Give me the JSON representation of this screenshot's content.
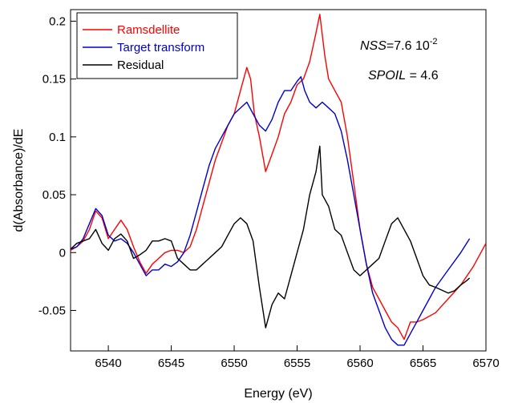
{
  "chart_data": {
    "type": "line",
    "xlabel": "Energy (eV)",
    "ylabel": "d(Absorbance)/dE",
    "xlim": [
      6537,
      6570
    ],
    "ylim": [
      -0.085,
      0.21
    ],
    "x_ticks": [
      6540,
      6545,
      6550,
      6555,
      6560,
      6565,
      6570
    ],
    "x_tick_labels": [
      "6540",
      "6545",
      "6550",
      "6555",
      "6560",
      "6565",
      "6570"
    ],
    "y_ticks": [
      -0.05,
      0,
      0.05,
      0.1,
      0.15,
      0.2
    ],
    "y_tick_labels": [
      "-0.05",
      "0",
      "0.05",
      "0.1",
      "0.15",
      "0.2"
    ],
    "grid": false,
    "legend_position": "top-left",
    "annotations": {
      "nss_name": "NSS",
      "nss_value": "=7.6 10",
      "nss_exp": "-2",
      "spoil_name": "SPOIL",
      "spoil_value": " = 4.6"
    },
    "series": [
      {
        "name": "Ramsdellite",
        "color": "#ff0000",
        "points": [
          [
            6537,
            0.002
          ],
          [
            6537.5,
            0.005
          ],
          [
            6538,
            0.01
          ],
          [
            6538.5,
            0.02
          ],
          [
            6539,
            0.036
          ],
          [
            6539.5,
            0.03
          ],
          [
            6540,
            0.012
          ],
          [
            6540.5,
            0.02
          ],
          [
            6541,
            0.028
          ],
          [
            6541.5,
            0.02
          ],
          [
            6542,
            0.005
          ],
          [
            6542.5,
            -0.008
          ],
          [
            6543,
            -0.018
          ],
          [
            6543.5,
            -0.01
          ],
          [
            6544,
            -0.005
          ],
          [
            6544.5,
            0.0
          ],
          [
            6545,
            0.002
          ],
          [
            6545.5,
            0.002
          ],
          [
            6546,
            0.0
          ],
          [
            6546.5,
            0.005
          ],
          [
            6547,
            0.02
          ],
          [
            6547.5,
            0.04
          ],
          [
            6548,
            0.06
          ],
          [
            6548.5,
            0.08
          ],
          [
            6549,
            0.095
          ],
          [
            6549.5,
            0.11
          ],
          [
            6550,
            0.12
          ],
          [
            6550.5,
            0.14
          ],
          [
            6551,
            0.16
          ],
          [
            6551.3,
            0.15
          ],
          [
            6551.6,
            0.12
          ],
          [
            6552,
            0.1
          ],
          [
            6552.5,
            0.07
          ],
          [
            6553,
            0.085
          ],
          [
            6553.5,
            0.1
          ],
          [
            6554,
            0.12
          ],
          [
            6554.5,
            0.13
          ],
          [
            6555,
            0.145
          ],
          [
            6555.5,
            0.15
          ],
          [
            6556,
            0.165
          ],
          [
            6556.5,
            0.19
          ],
          [
            6556.8,
            0.206
          ],
          [
            6557.2,
            0.17
          ],
          [
            6557.5,
            0.15
          ],
          [
            6558,
            0.14
          ],
          [
            6558.5,
            0.13
          ],
          [
            6559,
            0.1
          ],
          [
            6559.5,
            0.06
          ],
          [
            6560,
            0.02
          ],
          [
            6560.5,
            -0.01
          ],
          [
            6561,
            -0.03
          ],
          [
            6561.5,
            -0.04
          ],
          [
            6562,
            -0.05
          ],
          [
            6562.5,
            -0.06
          ],
          [
            6563,
            -0.065
          ],
          [
            6563.5,
            -0.075
          ],
          [
            6564,
            -0.06
          ],
          [
            6564.5,
            -0.06
          ],
          [
            6565,
            -0.058
          ],
          [
            6566,
            -0.052
          ],
          [
            6567,
            -0.04
          ],
          [
            6568,
            -0.028
          ],
          [
            6569,
            -0.012
          ],
          [
            6570,
            0.008
          ]
        ]
      },
      {
        "name": "Target transform",
        "color": "#0000cc",
        "points": [
          [
            6537,
            0.003
          ],
          [
            6537.5,
            0.005
          ],
          [
            6538,
            0.012
          ],
          [
            6538.5,
            0.025
          ],
          [
            6539,
            0.038
          ],
          [
            6539.5,
            0.032
          ],
          [
            6540,
            0.015
          ],
          [
            6540.5,
            0.01
          ],
          [
            6541,
            0.012
          ],
          [
            6541.5,
            0.008
          ],
          [
            6542,
            0.0
          ],
          [
            6542.5,
            -0.01
          ],
          [
            6543,
            -0.02
          ],
          [
            6543.5,
            -0.015
          ],
          [
            6544,
            -0.015
          ],
          [
            6544.5,
            -0.01
          ],
          [
            6545,
            -0.012
          ],
          [
            6545.5,
            -0.008
          ],
          [
            6546,
            0.0
          ],
          [
            6546.5,
            0.015
          ],
          [
            6547,
            0.035
          ],
          [
            6547.5,
            0.055
          ],
          [
            6548,
            0.075
          ],
          [
            6548.5,
            0.09
          ],
          [
            6549,
            0.1
          ],
          [
            6549.5,
            0.11
          ],
          [
            6550,
            0.12
          ],
          [
            6550.5,
            0.125
          ],
          [
            6551,
            0.13
          ],
          [
            6551.5,
            0.12
          ],
          [
            6552,
            0.11
          ],
          [
            6552.5,
            0.105
          ],
          [
            6553,
            0.115
          ],
          [
            6553.5,
            0.13
          ],
          [
            6554,
            0.14
          ],
          [
            6554.5,
            0.14
          ],
          [
            6555,
            0.148
          ],
          [
            6555.3,
            0.152
          ],
          [
            6555.6,
            0.14
          ],
          [
            6556,
            0.13
          ],
          [
            6556.5,
            0.125
          ],
          [
            6557,
            0.13
          ],
          [
            6557.5,
            0.125
          ],
          [
            6558,
            0.12
          ],
          [
            6558.5,
            0.105
          ],
          [
            6559,
            0.08
          ],
          [
            6559.5,
            0.05
          ],
          [
            6560,
            0.02
          ],
          [
            6560.5,
            -0.01
          ],
          [
            6561,
            -0.035
          ],
          [
            6561.5,
            -0.05
          ],
          [
            6562,
            -0.065
          ],
          [
            6562.5,
            -0.075
          ],
          [
            6563,
            -0.08
          ],
          [
            6563.5,
            -0.08
          ],
          [
            6564,
            -0.07
          ],
          [
            6564.5,
            -0.06
          ],
          [
            6565,
            -0.05
          ],
          [
            6565.5,
            -0.04
          ],
          [
            6566,
            -0.03
          ],
          [
            6567,
            -0.015
          ],
          [
            6568,
            0.0
          ],
          [
            6568.7,
            0.012
          ]
        ]
      },
      {
        "name": "Residual",
        "color": "#000000",
        "points": [
          [
            6537,
            0.003
          ],
          [
            6537.5,
            0.008
          ],
          [
            6538,
            0.01
          ],
          [
            6538.5,
            0.012
          ],
          [
            6539,
            0.02
          ],
          [
            6539.5,
            0.008
          ],
          [
            6540,
            0.002
          ],
          [
            6540.5,
            0.012
          ],
          [
            6541,
            0.016
          ],
          [
            6541.5,
            0.01
          ],
          [
            6542,
            -0.005
          ],
          [
            6542.5,
            -0.002
          ],
          [
            6543,
            0.002
          ],
          [
            6543.5,
            0.01
          ],
          [
            6544,
            0.01
          ],
          [
            6544.5,
            0.012
          ],
          [
            6545,
            0.01
          ],
          [
            6545.5,
            -0.005
          ],
          [
            6546,
            -0.01
          ],
          [
            6546.5,
            -0.015
          ],
          [
            6547,
            -0.015
          ],
          [
            6547.5,
            -0.01
          ],
          [
            6548,
            -0.005
          ],
          [
            6548.5,
            0.0
          ],
          [
            6549,
            0.005
          ],
          [
            6549.5,
            0.015
          ],
          [
            6550,
            0.025
          ],
          [
            6550.5,
            0.03
          ],
          [
            6551,
            0.025
          ],
          [
            6551.5,
            0.01
          ],
          [
            6552,
            -0.03
          ],
          [
            6552.5,
            -0.065
          ],
          [
            6553,
            -0.045
          ],
          [
            6553.5,
            -0.035
          ],
          [
            6554,
            -0.04
          ],
          [
            6554.5,
            -0.02
          ],
          [
            6555,
            0.0
          ],
          [
            6555.5,
            0.02
          ],
          [
            6556,
            0.05
          ],
          [
            6556.5,
            0.07
          ],
          [
            6556.8,
            0.092
          ],
          [
            6557,
            0.05
          ],
          [
            6557.5,
            0.04
          ],
          [
            6558,
            0.02
          ],
          [
            6558.5,
            0.015
          ],
          [
            6559,
            0.0
          ],
          [
            6559.5,
            -0.015
          ],
          [
            6560,
            -0.02
          ],
          [
            6560.5,
            -0.015
          ],
          [
            6561,
            -0.01
          ],
          [
            6561.5,
            -0.005
          ],
          [
            6562,
            0.01
          ],
          [
            6562.5,
            0.025
          ],
          [
            6563,
            0.03
          ],
          [
            6563.5,
            0.02
          ],
          [
            6564,
            0.01
          ],
          [
            6564.5,
            -0.005
          ],
          [
            6565,
            -0.02
          ],
          [
            6565.5,
            -0.028
          ],
          [
            6566,
            -0.03
          ],
          [
            6567,
            -0.035
          ],
          [
            6567.5,
            -0.033
          ],
          [
            6568,
            -0.028
          ],
          [
            6568.5,
            -0.024
          ],
          [
            6568.7,
            -0.022
          ]
        ]
      }
    ]
  }
}
